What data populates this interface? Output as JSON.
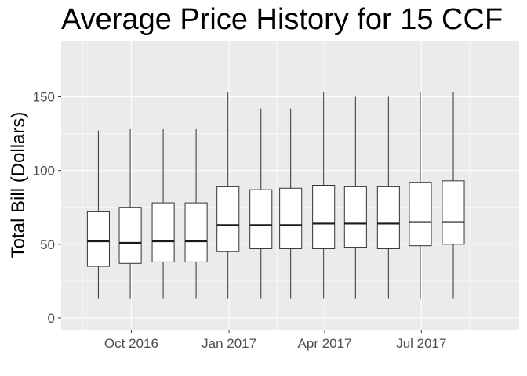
{
  "chart_data": {
    "type": "boxplot",
    "title": "Average Price History for 15 CCF",
    "xlabel": "",
    "ylabel": "Total Bill (Dollars)",
    "ylim": [
      -8,
      188
    ],
    "yticks": [
      0,
      50,
      100,
      150
    ],
    "x_axis": {
      "type": "date",
      "range": [
        "2016-07-27",
        "2017-10-01"
      ],
      "ticks": [
        {
          "date": "2016-10-01",
          "label": "Oct 2016"
        },
        {
          "date": "2017-01-01",
          "label": "Jan 2017"
        },
        {
          "date": "2017-04-01",
          "label": "Apr 2017"
        },
        {
          "date": "2017-07-01",
          "label": "Jul 2017"
        }
      ]
    },
    "grid": true,
    "background": "#EBEBEB",
    "boxes": [
      {
        "date": "2016-08-31",
        "min": 13,
        "q1": 35,
        "median": 52,
        "q3": 72,
        "max": 127
      },
      {
        "date": "2016-09-30",
        "min": 13,
        "q1": 37,
        "median": 51,
        "q3": 75,
        "max": 128
      },
      {
        "date": "2016-10-31",
        "min": 13,
        "q1": 38,
        "median": 52,
        "q3": 78,
        "max": 128
      },
      {
        "date": "2016-12-01",
        "min": 13,
        "q1": 38,
        "median": 52,
        "q3": 78,
        "max": 128
      },
      {
        "date": "2016-12-31",
        "min": 13,
        "q1": 45,
        "median": 63,
        "q3": 89,
        "max": 153
      },
      {
        "date": "2017-01-31",
        "min": 13,
        "q1": 47,
        "median": 63,
        "q3": 87,
        "max": 142
      },
      {
        "date": "2017-02-28",
        "min": 13,
        "q1": 47,
        "median": 63,
        "q3": 88,
        "max": 142
      },
      {
        "date": "2017-03-31",
        "min": 13,
        "q1": 47,
        "median": 64,
        "q3": 90,
        "max": 153
      },
      {
        "date": "2017-04-30",
        "min": 13,
        "q1": 48,
        "median": 64,
        "q3": 89,
        "max": 150
      },
      {
        "date": "2017-05-31",
        "min": 13,
        "q1": 47,
        "median": 64,
        "q3": 89,
        "max": 150
      },
      {
        "date": "2017-06-30",
        "min": 13,
        "q1": 49,
        "median": 65,
        "q3": 92,
        "max": 153
      },
      {
        "date": "2017-07-31",
        "min": 13,
        "q1": 50,
        "median": 65,
        "q3": 93,
        "max": 153
      }
    ]
  }
}
